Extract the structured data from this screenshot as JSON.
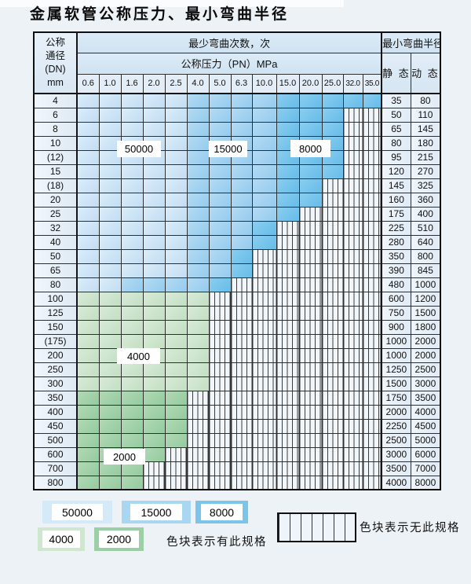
{
  "title": "金属软管公称压力、最小弯曲半径",
  "table": {
    "dn_header_lines": [
      "公称",
      "通径",
      "(DN)",
      "mm"
    ],
    "bend_times_header": "最少弯曲次数，次",
    "pressure_header": "公称压力（PN）MPa",
    "pressure_columns": [
      "0.6",
      "1.0",
      "1.6",
      "2.0",
      "2.5",
      "4.0",
      "5.0",
      "6.3",
      "10.0",
      "15.0",
      "20.0",
      "25.0",
      "32.0",
      "35.0"
    ],
    "radius_header": "最小弯曲半径",
    "static_header": "静 态",
    "dynamic_header": "动 态",
    "rows": [
      {
        "dn": "4",
        "static": "35",
        "dynamic": "80",
        "zone": {
          "light": 5,
          "medium": 9,
          "dark": 14
        }
      },
      {
        "dn": "6",
        "static": "50",
        "dynamic": "110",
        "zone": {
          "light": 5,
          "medium": 9,
          "dark": 12
        }
      },
      {
        "dn": "8",
        "static": "65",
        "dynamic": "145",
        "zone": {
          "light": 5,
          "medium": 9,
          "dark": 12
        }
      },
      {
        "dn": "10",
        "static": "80",
        "dynamic": "180",
        "zone": {
          "light": 5,
          "medium": 9,
          "dark": 12
        }
      },
      {
        "dn": "(12)",
        "static": "95",
        "dynamic": "215",
        "zone": {
          "light": 5,
          "medium": 9,
          "dark": 12
        }
      },
      {
        "dn": "15",
        "static": "120",
        "dynamic": "270",
        "zone": {
          "light": 5,
          "medium": 9,
          "dark": 12
        }
      },
      {
        "dn": "(18)",
        "static": "145",
        "dynamic": "325",
        "zone": {
          "light": 5,
          "medium": 9,
          "dark": 11
        }
      },
      {
        "dn": "20",
        "static": "160",
        "dynamic": "360",
        "zone": {
          "light": 5,
          "medium": 9,
          "dark": 11
        }
      },
      {
        "dn": "25",
        "static": "175",
        "dynamic": "400",
        "zone": {
          "light": 5,
          "medium": 9,
          "dark": 10
        }
      },
      {
        "dn": "32",
        "static": "225",
        "dynamic": "510",
        "zone": {
          "light": 5,
          "medium": 8,
          "dark": 9
        }
      },
      {
        "dn": "40",
        "static": "280",
        "dynamic": "640",
        "zone": {
          "light": 5,
          "medium": 8,
          "dark": 9
        }
      },
      {
        "dn": "50",
        "static": "350",
        "dynamic": "800",
        "zone": {
          "light": 5,
          "medium": 7,
          "dark": 8
        }
      },
      {
        "dn": "65",
        "static": "390",
        "dynamic": "845",
        "zone": {
          "light": 5,
          "medium": 7,
          "dark": 8
        }
      },
      {
        "dn": "80",
        "static": "480",
        "dynamic": "1000",
        "zone": {
          "light": 2,
          "medium": 6,
          "dark": 7
        }
      },
      {
        "dn": "100",
        "static": "600",
        "dynamic": "1200",
        "zone": {
          "green4000": 6
        }
      },
      {
        "dn": "125",
        "static": "750",
        "dynamic": "1500",
        "zone": {
          "green4000": 6
        }
      },
      {
        "dn": "150",
        "static": "900",
        "dynamic": "1800",
        "zone": {
          "green4000": 6
        }
      },
      {
        "dn": "(175)",
        "static": "1000",
        "dynamic": "2000",
        "zone": {
          "green4000": 6
        }
      },
      {
        "dn": "200",
        "static": "1000",
        "dynamic": "2000",
        "zone": {
          "green4000": 6
        }
      },
      {
        "dn": "250",
        "static": "1250",
        "dynamic": "2500",
        "zone": {
          "green4000": 6
        }
      },
      {
        "dn": "300",
        "static": "1500",
        "dynamic": "3000",
        "zone": {
          "green4000": 6
        }
      },
      {
        "dn": "350",
        "static": "1750",
        "dynamic": "3500",
        "zone": {
          "green2000": 5
        }
      },
      {
        "dn": "400",
        "static": "2000",
        "dynamic": "4000",
        "zone": {
          "green2000": 5
        }
      },
      {
        "dn": "450",
        "static": "2250",
        "dynamic": "4500",
        "zone": {
          "green2000": 5
        }
      },
      {
        "dn": "500",
        "static": "2500",
        "dynamic": "5000",
        "zone": {
          "green2000": 5
        }
      },
      {
        "dn": "600",
        "static": "3000",
        "dynamic": "6000",
        "zone": {
          "green2000": 4
        }
      },
      {
        "dn": "700",
        "static": "3500",
        "dynamic": "7000",
        "zone": {
          "green2000": 3
        }
      },
      {
        "dn": "800",
        "static": "4000",
        "dynamic": "8000",
        "zone": {
          "green2000": 3
        }
      }
    ]
  },
  "overlays": {
    "label_50000": "50000",
    "label_15000": "15000",
    "label_8000": "8000",
    "label_4000": "4000",
    "label_2000": "2000"
  },
  "legend": {
    "items": [
      {
        "value": "50000",
        "color": "#d5eaf8"
      },
      {
        "value": "15000",
        "color": "#a9d6f0"
      },
      {
        "value": "8000",
        "color": "#7cc5ea"
      },
      {
        "value": "4000",
        "color": "#cfe6cf"
      },
      {
        "value": "2000",
        "color": "#9bcfa5"
      }
    ],
    "has_spec_note": "色块表示有此规格",
    "no_spec_note": "色块表示无此规格"
  },
  "colors": {
    "cycles_50000": "#d5eaf8",
    "cycles_15000": "#a9d6f0",
    "cycles_8000": "#7cc5ea",
    "cycles_4000": "#cfe6cf",
    "cycles_2000": "#9bcfa5",
    "page_background": "#edf2f6"
  }
}
